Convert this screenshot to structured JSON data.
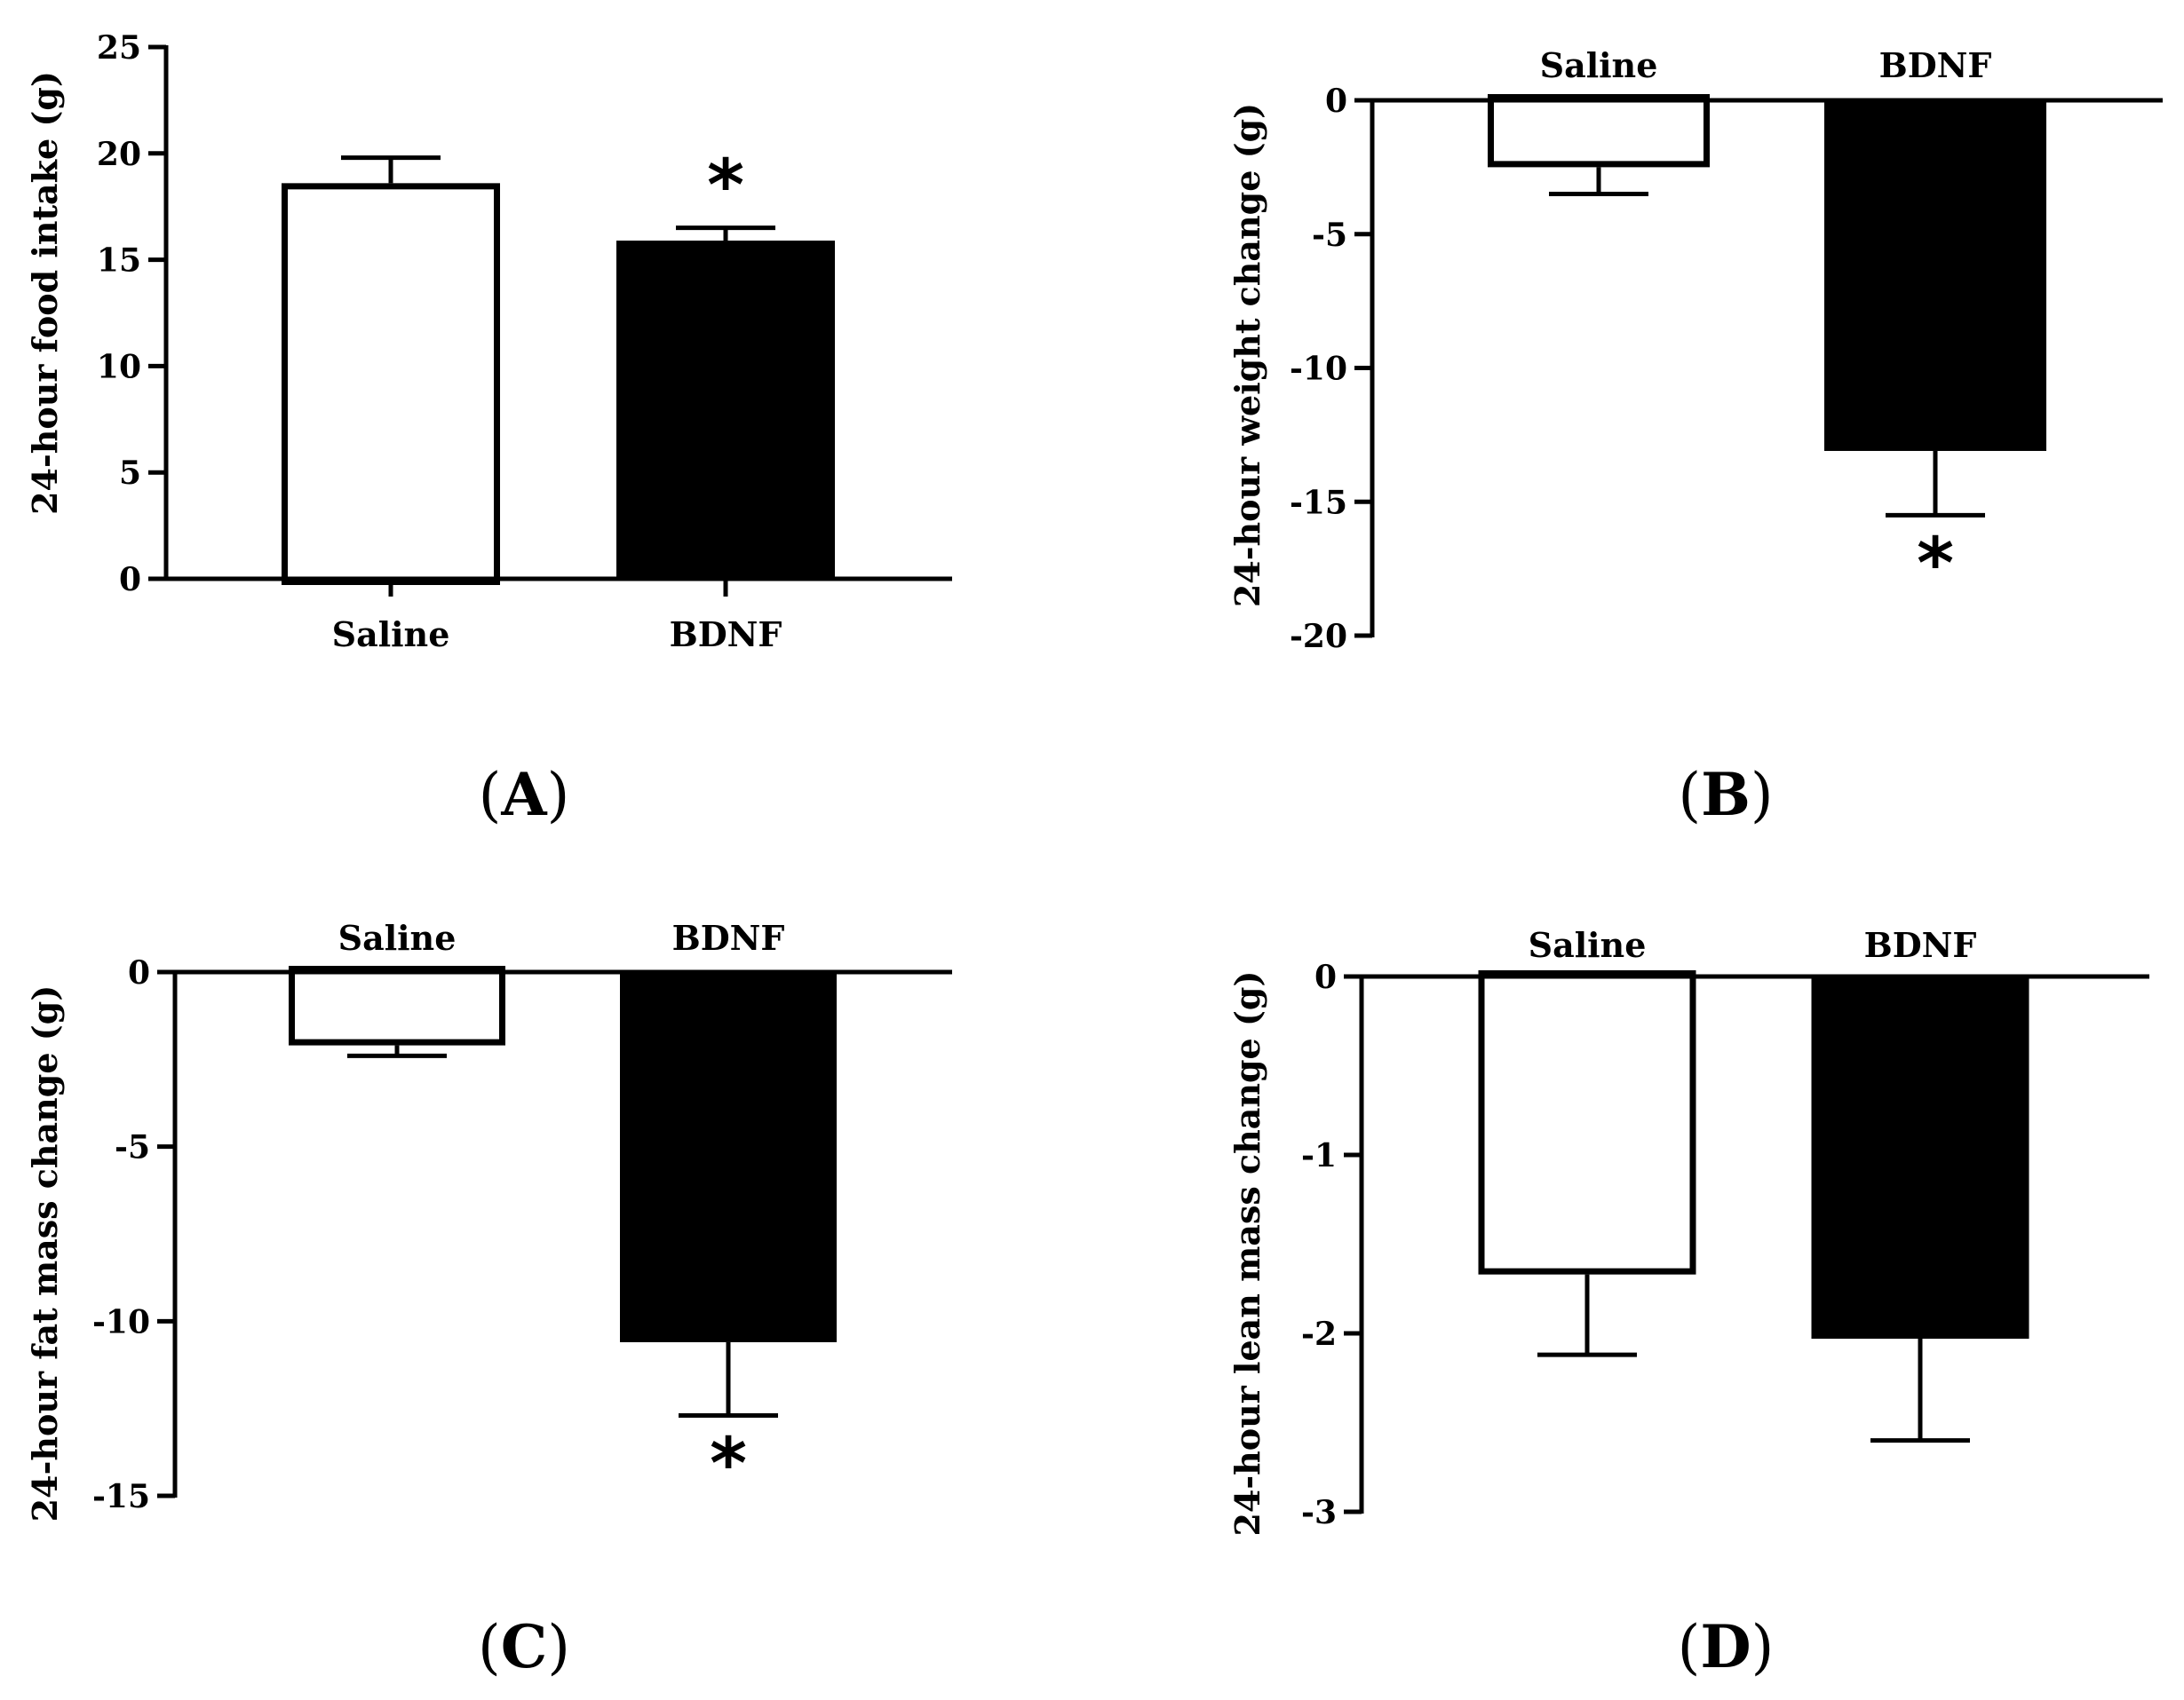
{
  "chart_data": [
    {
      "panel": "A",
      "type": "bar",
      "categories": [
        "Saline",
        "BDNF"
      ],
      "values": [
        18.6,
        15.9
      ],
      "errors": [
        1.2,
        0.6
      ],
      "fills": [
        "#ffffff",
        "#000000"
      ],
      "significance": [
        "",
        "*"
      ],
      "ylabel": "24-hour food intake (g)",
      "ylim": [
        0,
        25
      ],
      "yticks": [
        0,
        5,
        10,
        15,
        20,
        25
      ],
      "tick_labels": [
        "0",
        "5",
        "10",
        "15",
        "20",
        "25"
      ],
      "category_position": "bottom"
    },
    {
      "panel": "B",
      "type": "bar",
      "categories": [
        "Saline",
        "BDNF"
      ],
      "values": [
        -2.5,
        -13.1
      ],
      "errors": [
        1.0,
        2.4
      ],
      "fills": [
        "#ffffff",
        "#000000"
      ],
      "significance": [
        "",
        "*"
      ],
      "ylabel": "24-hour weight change (g)",
      "ylim": [
        -20,
        0
      ],
      "yticks": [
        0,
        -5,
        -10,
        -15,
        -20
      ],
      "tick_labels": [
        "0",
        "-5",
        "-10",
        "-15",
        "-20"
      ],
      "category_position": "top"
    },
    {
      "panel": "C",
      "type": "bar",
      "categories": [
        "Saline",
        "BDNF"
      ],
      "values": [
        -2.1,
        -10.6
      ],
      "errors": [
        0.3,
        2.1
      ],
      "fills": [
        "#ffffff",
        "#000000"
      ],
      "significance": [
        "",
        "*"
      ],
      "ylabel": "24-hour fat mass change (g)",
      "ylim": [
        -15,
        0
      ],
      "yticks": [
        0,
        -5,
        -10,
        -15
      ],
      "tick_labels": [
        "0",
        "-5",
        "-10",
        "-15"
      ],
      "category_position": "top"
    },
    {
      "panel": "D",
      "type": "bar",
      "categories": [
        "Saline",
        "BDNF"
      ],
      "values": [
        -1.67,
        -2.03
      ],
      "errors": [
        0.45,
        0.57
      ],
      "fills": [
        "#ffffff",
        "#000000"
      ],
      "significance": [
        "",
        ""
      ],
      "ylabel": "24-hour lean mass change (g)",
      "ylim": [
        -3,
        0
      ],
      "yticks": [
        0,
        -1,
        -2,
        -3
      ],
      "tick_labels": [
        "0",
        "-1",
        "-2",
        "-3"
      ],
      "category_position": "top"
    }
  ],
  "panel_labels": [
    "A",
    "B",
    "C",
    "D"
  ]
}
